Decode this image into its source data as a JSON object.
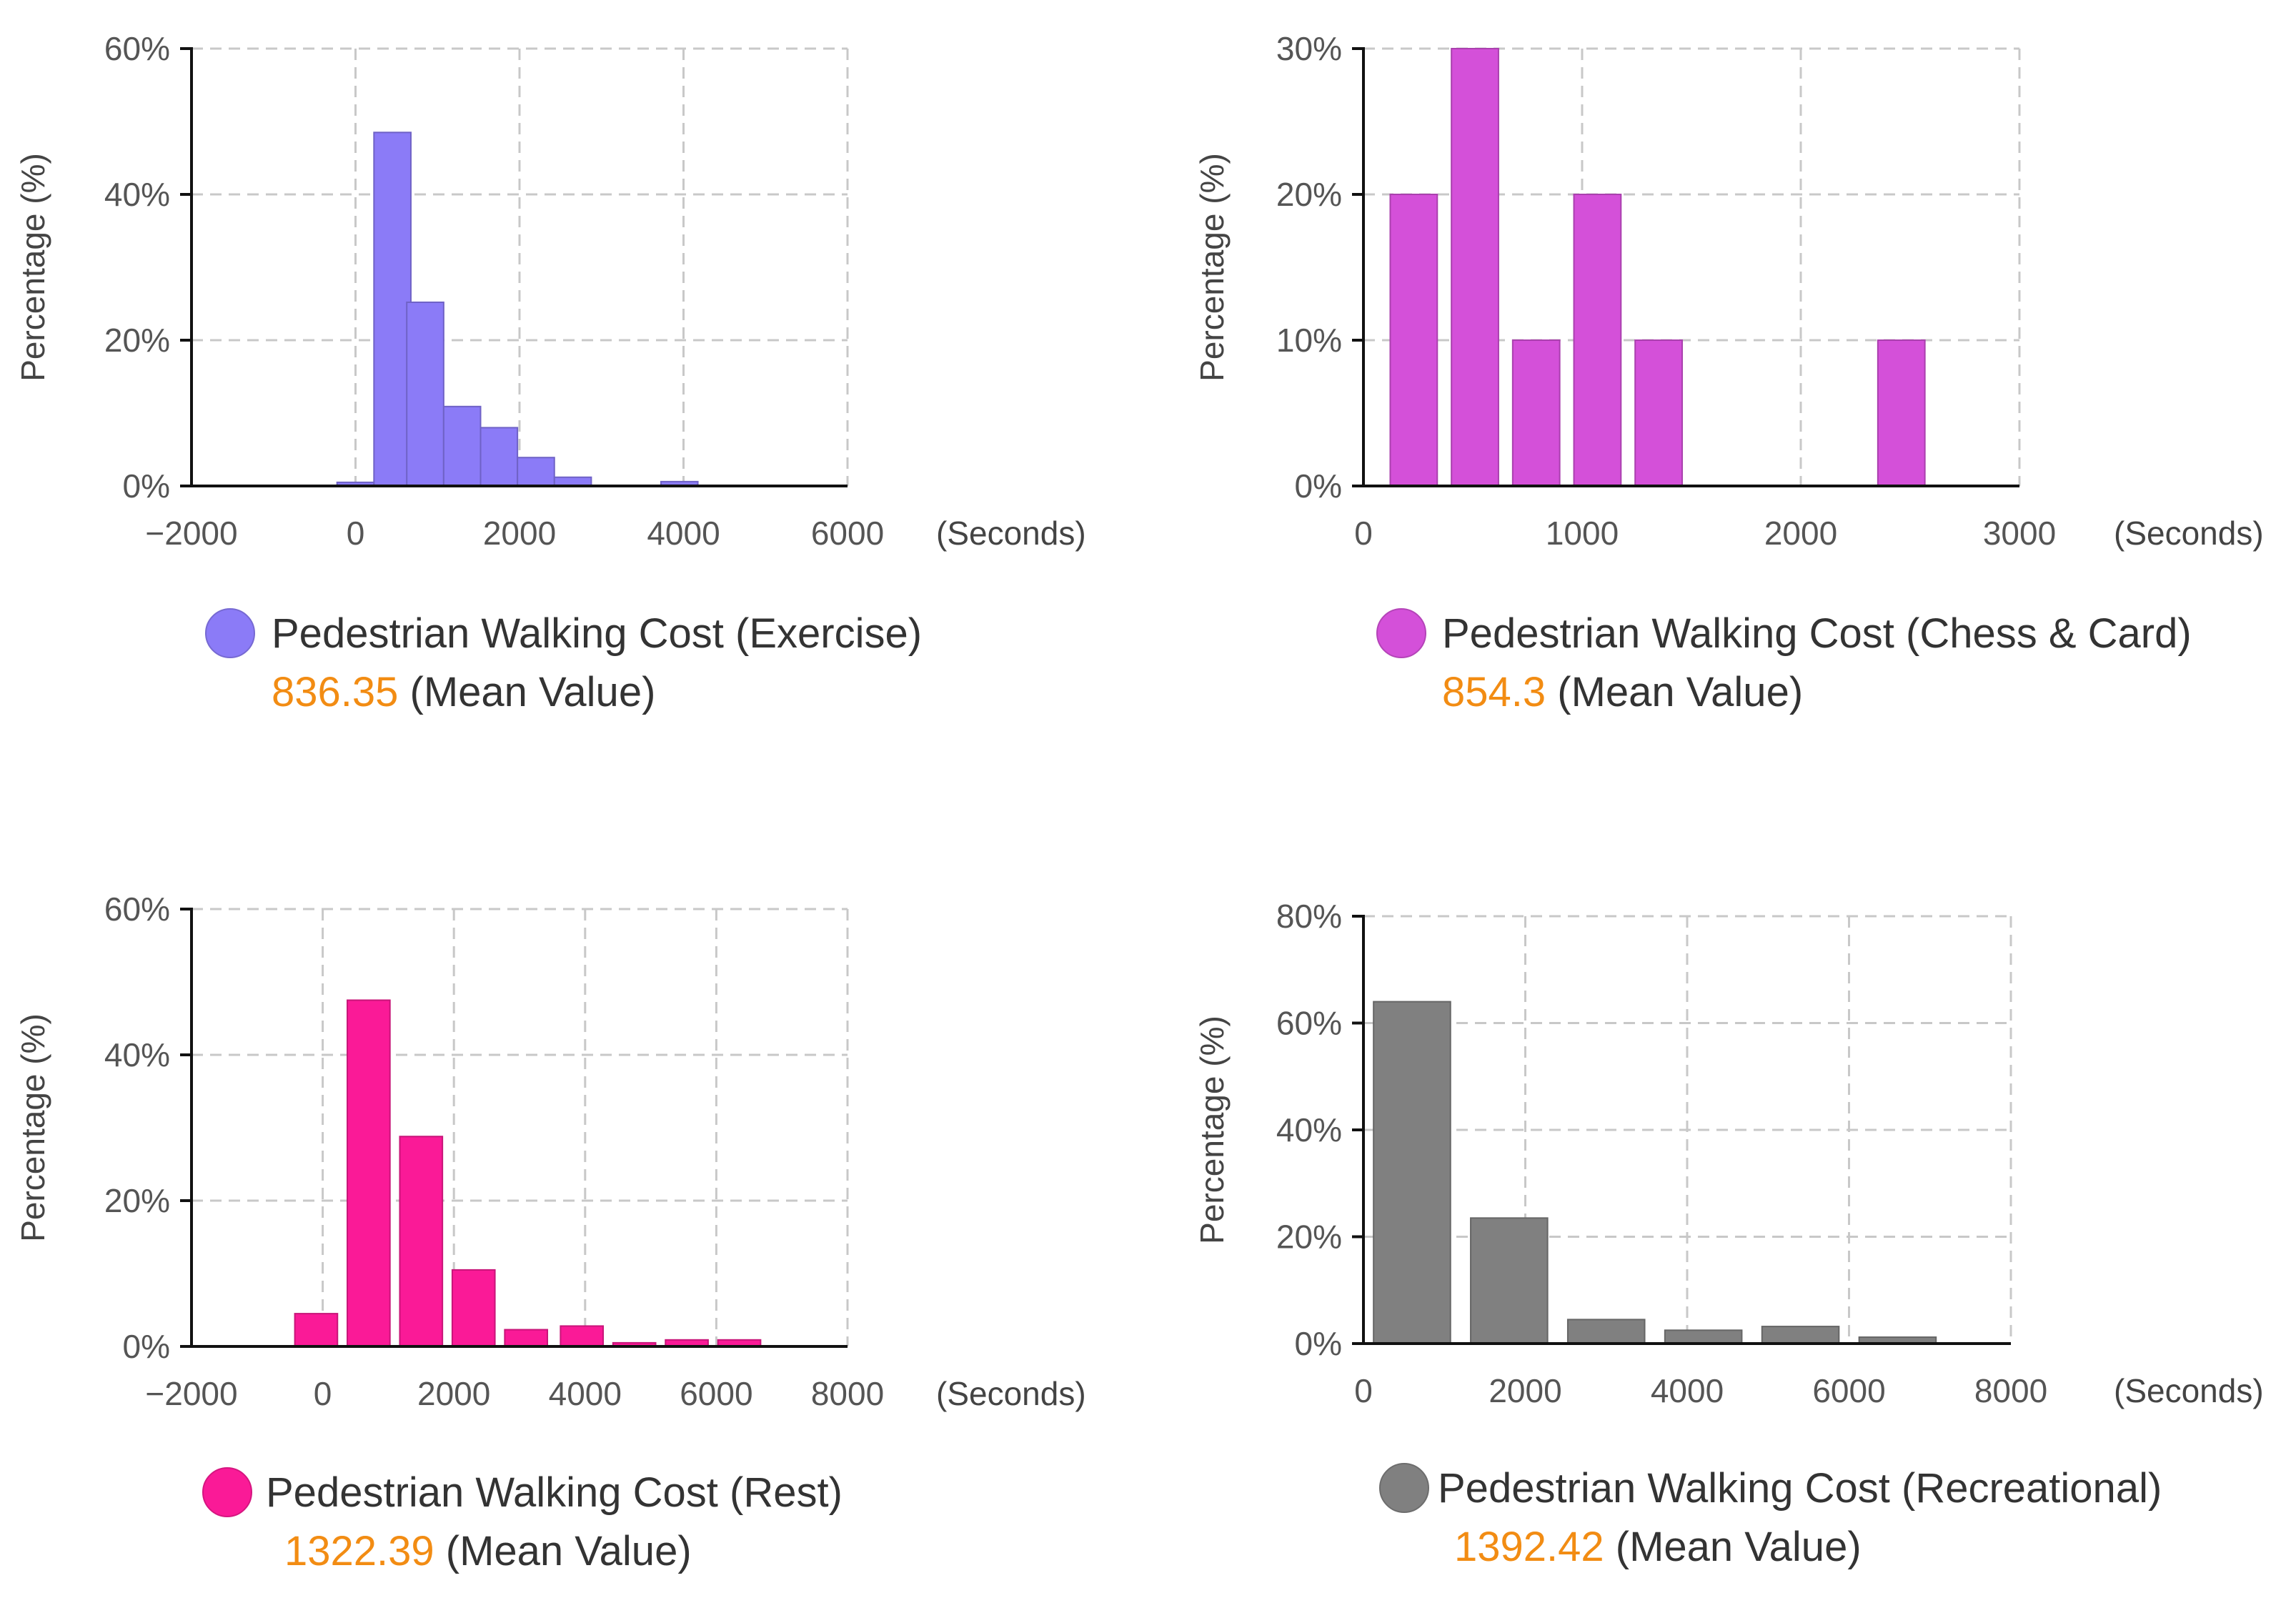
{
  "chart_data": [
    {
      "type": "bar",
      "title": "Pedestrian Walking Cost (Exercise)",
      "legend_label": "Pedestrian Walking Cost (Exercise)",
      "mean_value": "836.35",
      "mean_label": "(Mean Value)",
      "color": "#8B7BF7",
      "ylabel": "Percentage (%)",
      "xunit": "(Seconds)",
      "xlim": [
        -2000,
        6000
      ],
      "ylim": [
        0,
        60
      ],
      "xticks": [
        -2000,
        0,
        2000,
        4000,
        6000
      ],
      "xtick_labels": [
        "−2000",
        "0",
        "2000",
        "4000",
        "6000"
      ],
      "yticks": [
        0,
        20,
        40,
        60
      ],
      "ytick_labels": [
        "0%",
        "20%",
        "40%",
        "60%"
      ],
      "bin_width": 450,
      "bars": [
        {
          "x": 0,
          "value": 0.5
        },
        {
          "x": 450,
          "value": 48.5
        },
        {
          "x": 850,
          "value": 25.2
        },
        {
          "x": 1300,
          "value": 10.9
        },
        {
          "x": 1750,
          "value": 8.0
        },
        {
          "x": 2200,
          "value": 3.9
        },
        {
          "x": 2650,
          "value": 1.2
        },
        {
          "x": 3950,
          "value": 0.6
        }
      ]
    },
    {
      "type": "bar",
      "title": "Pedestrian Walking Cost (Chess & Card)",
      "legend_label": "Pedestrian Walking Cost (Chess & Card)",
      "mean_value": "854.3",
      "mean_label": "(Mean Value)",
      "color": "#D450D9",
      "ylabel": "Percentage (%)",
      "xunit": "(Seconds)",
      "xlim": [
        0,
        3000
      ],
      "ylim": [
        0,
        30
      ],
      "xticks": [
        0,
        1000,
        2000,
        3000
      ],
      "xtick_labels": [
        "0",
        "1000",
        "2000",
        "3000"
      ],
      "yticks": [
        0,
        10,
        20,
        30
      ],
      "ytick_labels": [
        "0%",
        "10%",
        "20%",
        "30%"
      ],
      "bin_width": 215,
      "bars": [
        {
          "x": 230,
          "value": 20
        },
        {
          "x": 510,
          "value": 30
        },
        {
          "x": 790,
          "value": 10
        },
        {
          "x": 1070,
          "value": 20
        },
        {
          "x": 1350,
          "value": 10
        },
        {
          "x": 2460,
          "value": 10
        }
      ]
    },
    {
      "type": "bar",
      "title": "Pedestrian Walking Cost (Rest)",
      "legend_label": "Pedestrian Walking Cost (Rest)",
      "mean_value": "1322.39",
      "mean_label": "(Mean Value)",
      "color": "#FA1A97",
      "ylabel": "Percentage (%)",
      "xunit": "(Seconds)",
      "xlim": [
        -2000,
        8000
      ],
      "ylim": [
        0,
        60
      ],
      "xticks": [
        -2000,
        0,
        2000,
        4000,
        6000,
        8000
      ],
      "xtick_labels": [
        "−2000",
        "0",
        "2000",
        "4000",
        "6000",
        "8000"
      ],
      "yticks": [
        0,
        20,
        40,
        60
      ],
      "ytick_labels": [
        "0%",
        "20%",
        "40%",
        "60%"
      ],
      "bin_width": 650,
      "bars": [
        {
          "x": -100,
          "value": 4.5
        },
        {
          "x": 700,
          "value": 47.5
        },
        {
          "x": 1500,
          "value": 28.8
        },
        {
          "x": 2300,
          "value": 10.5
        },
        {
          "x": 3100,
          "value": 2.3
        },
        {
          "x": 3950,
          "value": 2.8
        },
        {
          "x": 4750,
          "value": 0.5
        },
        {
          "x": 5550,
          "value": 0.9
        },
        {
          "x": 6350,
          "value": 0.9
        }
      ]
    },
    {
      "type": "bar",
      "title": "Pedestrian Walking Cost (Recreational)",
      "legend_label": "Pedestrian Walking Cost (Recreational)",
      "mean_value": "1392.42",
      "mean_label": "(Mean Value)",
      "color": "#808080",
      "ylabel": "Percentage (%)",
      "xunit": "(Seconds)",
      "xlim": [
        0,
        8000
      ],
      "ylim": [
        0,
        80
      ],
      "xticks": [
        0,
        2000,
        4000,
        6000,
        8000
      ],
      "xtick_labels": [
        "0",
        "2000",
        "4000",
        "6000",
        "8000"
      ],
      "yticks": [
        0,
        20,
        40,
        60,
        80
      ],
      "ytick_labels": [
        "0%",
        "20%",
        "40%",
        "60%",
        "80%"
      ],
      "bin_width": 950,
      "bars": [
        {
          "x": 600,
          "value": 64.0
        },
        {
          "x": 1800,
          "value": 23.5
        },
        {
          "x": 3000,
          "value": 4.5
        },
        {
          "x": 4200,
          "value": 2.5
        },
        {
          "x": 5400,
          "value": 3.2
        },
        {
          "x": 6600,
          "value": 1.2
        }
      ]
    }
  ]
}
